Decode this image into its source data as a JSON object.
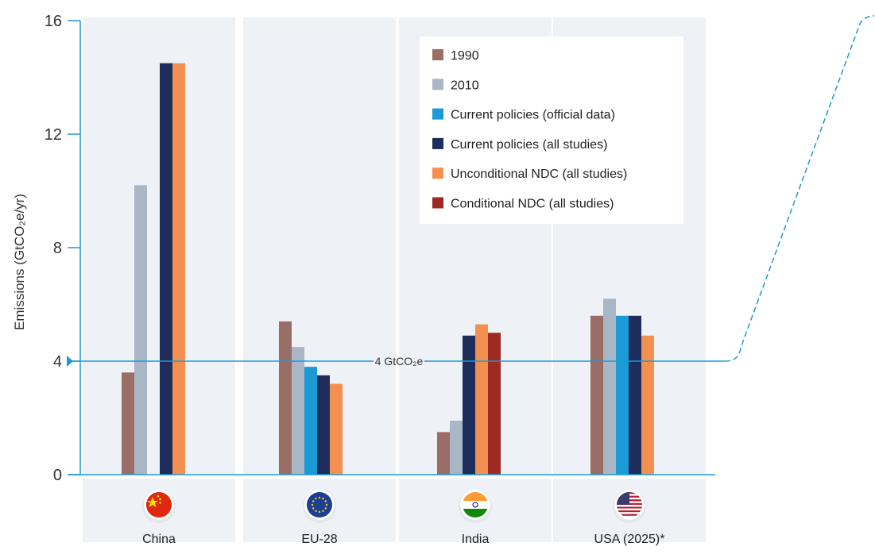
{
  "chart_data": {
    "type": "bar",
    "ylabel": "Emissions (GtCO₂e/yr)",
    "xlabel": "",
    "ylim": [
      0,
      16
    ],
    "yticks": [
      0,
      4,
      8,
      12,
      16
    ],
    "categories": [
      "China",
      "EU-28",
      "India",
      "USA (2025)*"
    ],
    "category_flag_icons": [
      "china-flag-icon",
      "eu-flag-icon",
      "india-flag-icon",
      "usa-flag-icon"
    ],
    "series": [
      {
        "name": "1990",
        "color": "#9a6e66",
        "values": [
          3.6,
          5.4,
          1.5,
          5.6
        ]
      },
      {
        "name": "2010",
        "color": "#a9b6c6",
        "values": [
          10.2,
          4.5,
          1.9,
          6.2
        ]
      },
      {
        "name": "Current policies (official data)",
        "color": "#1b9ad6",
        "values": [
          null,
          3.8,
          null,
          5.6
        ]
      },
      {
        "name": "Current policies (all studies)",
        "color": "#1f2d5c",
        "values": [
          14.5,
          3.5,
          4.9,
          5.6
        ]
      },
      {
        "name": "Unconditional NDC (all studies)",
        "color": "#f4904f",
        "values": [
          14.5,
          3.2,
          5.3,
          4.9
        ]
      },
      {
        "name": "Conditional NDC (all studies)",
        "color": "#9e2a24",
        "values": [
          null,
          null,
          5.0,
          null
        ]
      }
    ],
    "reference_line": {
      "value": 4,
      "label": "4 GtCO₂e",
      "color": "#1b9ad6"
    },
    "legend_position": "top-right",
    "grid": false,
    "panel_color": "#eef1f5"
  }
}
